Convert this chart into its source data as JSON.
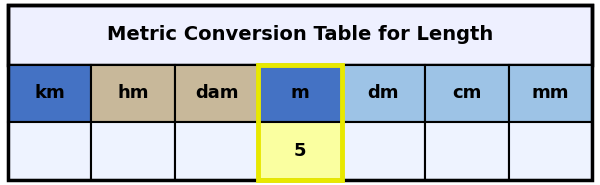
{
  "title": "Metric Conversion Table for Length",
  "columns": [
    "km",
    "hm",
    "dam",
    "m",
    "dm",
    "cm",
    "mm"
  ],
  "header_colors": [
    "#4472C4",
    "#C8B89A",
    "#C8B89A",
    "#4472C4",
    "#9DC3E6",
    "#9DC3E6",
    "#9DC3E6"
  ],
  "data_row": [
    "",
    "",
    "",
    "5",
    "",
    "",
    ""
  ],
  "data_colors": [
    "#EEF3FF",
    "#EEF3FF",
    "#EEF3FF",
    "#FAFFA0",
    "#EEF3FF",
    "#EEF3FF",
    "#EEF3FF"
  ],
  "highlighted_col": 3,
  "highlight_border_color": "#E8E800",
  "bg_color": "#FFFFFF",
  "title_bg": "#EEF0FF",
  "border_color": "#000000",
  "title_fontsize": 14,
  "cell_fontsize": 13,
  "outer_border_lw": 2.5,
  "cell_border_lw": 1.5,
  "highlight_lw": 3.5
}
